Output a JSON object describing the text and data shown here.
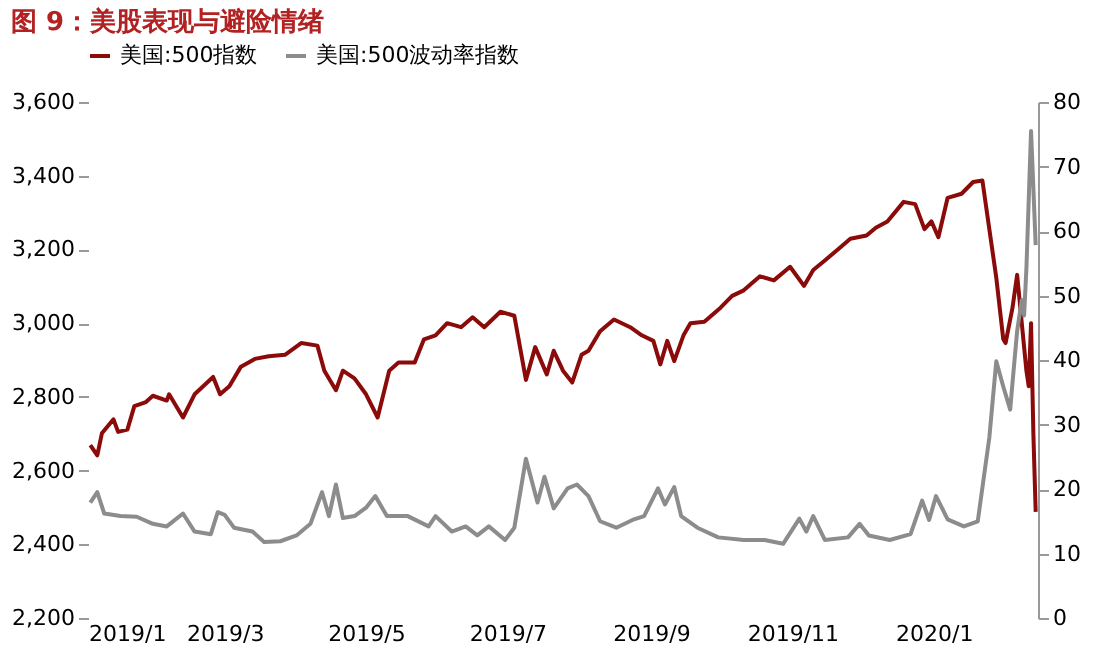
{
  "chart_data": {
    "type": "line",
    "title": "图 9：美股表现与避险情绪",
    "xlim": [
      "2019-01-01",
      "2020-02-15"
    ],
    "xticks": [
      {
        "value": "2019-01-01",
        "label": "2019/1"
      },
      {
        "value": "2019-03-01",
        "label": "2019/3"
      },
      {
        "value": "2019-05-01",
        "label": "2019/5"
      },
      {
        "value": "2019-07-01",
        "label": "2019/7"
      },
      {
        "value": "2019-09-01",
        "label": "2019/9"
      },
      {
        "value": "2019-11-01",
        "label": "2019/11"
      },
      {
        "value": "2020-01-01",
        "label": "2020/1"
      }
    ],
    "ylim": [
      2200,
      3600
    ],
    "yticks": [
      {
        "value": 2200,
        "label": "2,200"
      },
      {
        "value": 2400,
        "label": "2,400"
      },
      {
        "value": 2600,
        "label": "2,600"
      },
      {
        "value": 2800,
        "label": "2,800"
      },
      {
        "value": 3000,
        "label": "3,000"
      },
      {
        "value": 3200,
        "label": "3,200"
      },
      {
        "value": 3400,
        "label": "3,400"
      },
      {
        "value": 3600,
        "label": "3,600"
      }
    ],
    "y2lim": [
      0,
      80
    ],
    "y2ticks": [
      0,
      10,
      20,
      30,
      40,
      50,
      60,
      70,
      80
    ],
    "grid": false,
    "legend": "top",
    "marker": "none",
    "line_style": "solid",
    "series": [
      {
        "name": "美国:500指数",
        "color": "#8b0a0a",
        "x": [
          "2019-01-02",
          "2019-01-05",
          "2019-01-07",
          "2019-01-12",
          "2019-01-14",
          "2019-01-18",
          "2019-01-21",
          "2019-01-26",
          "2019-01-29",
          "2019-02-04",
          "2019-02-05",
          "2019-02-11",
          "2019-02-16",
          "2019-02-24",
          "2019-02-27",
          "2019-03-03",
          "2019-03-08",
          "2019-03-14",
          "2019-03-20",
          "2019-03-27",
          "2019-04-03",
          "2019-04-10",
          "2019-04-13",
          "2019-04-18",
          "2019-04-21",
          "2019-04-26",
          "2019-05-01",
          "2019-05-06",
          "2019-05-11",
          "2019-05-15",
          "2019-05-22",
          "2019-05-26",
          "2019-05-31",
          "2019-06-05",
          "2019-06-11",
          "2019-06-16",
          "2019-06-21",
          "2019-06-28",
          "2019-07-04",
          "2019-07-09",
          "2019-07-13",
          "2019-07-18",
          "2019-07-21",
          "2019-07-25",
          "2019-07-29",
          "2019-08-02",
          "2019-08-05",
          "2019-08-10",
          "2019-08-16",
          "2019-08-23",
          "2019-08-28",
          "2019-09-02",
          "2019-09-05",
          "2019-09-08",
          "2019-09-11",
          "2019-09-15",
          "2019-09-18",
          "2019-09-24",
          "2019-10-01",
          "2019-10-06",
          "2019-10-11",
          "2019-10-18",
          "2019-10-24",
          "2019-10-31",
          "2019-11-06",
          "2019-11-10",
          "2019-11-15",
          "2019-11-21",
          "2019-11-26",
          "2019-12-03",
          "2019-12-07",
          "2019-12-12",
          "2019-12-19",
          "2019-12-24",
          "2019-12-28",
          "2019-12-31",
          "2020-01-03",
          "2020-01-07",
          "2020-01-13",
          "2020-01-18",
          "2020-01-22",
          "2020-01-25",
          "2020-01-28",
          "2020-01-31",
          "2020-02-01",
          "2020-02-04",
          "2020-02-06",
          "2020-02-08",
          "2020-02-10",
          "2020-02-11",
          "2020-02-12",
          "2020-02-13",
          "2020-02-14"
        ],
        "values": [
          2669,
          2641,
          2701,
          2739,
          2705,
          2711,
          2775,
          2786,
          2803,
          2790,
          2807,
          2744,
          2807,
          2854,
          2807,
          2829,
          2882,
          2903,
          2910,
          2914,
          2946,
          2939,
          2871,
          2818,
          2871,
          2850,
          2807,
          2744,
          2871,
          2893,
          2893,
          2956,
          2967,
          3000,
          2989,
          3016,
          2989,
          3031,
          3020,
          2846,
          2935,
          2861,
          2925,
          2871,
          2839,
          2914,
          2925,
          2978,
          3010,
          2989,
          2967,
          2952,
          2888,
          2952,
          2897,
          2967,
          3000,
          3004,
          3042,
          3074,
          3089,
          3127,
          3116,
          3153,
          3101,
          3144,
          3170,
          3202,
          3229,
          3238,
          3259,
          3276,
          3329,
          3323,
          3255,
          3276,
          3233,
          3340,
          3351,
          3383,
          3387,
          3255,
          3123,
          2957,
          2946,
          3042,
          3131,
          3000,
          2871,
          2829,
          3000,
          2701,
          2488
        ]
      },
      {
        "name": "美国:500波动率指数",
        "color": "#8c8c8c",
        "axis": "y2",
        "x": [
          "2019-01-02",
          "2019-01-05",
          "2019-01-08",
          "2019-01-15",
          "2019-01-22",
          "2019-01-29",
          "2019-02-04",
          "2019-02-11",
          "2019-02-16",
          "2019-02-23",
          "2019-02-26",
          "2019-03-01",
          "2019-03-05",
          "2019-03-13",
          "2019-03-18",
          "2019-03-25",
          "2019-04-01",
          "2019-04-07",
          "2019-04-12",
          "2019-04-15",
          "2019-04-18",
          "2019-04-21",
          "2019-04-26",
          "2019-05-01",
          "2019-05-05",
          "2019-05-10",
          "2019-05-19",
          "2019-05-28",
          "2019-05-31",
          "2019-06-07",
          "2019-06-13",
          "2019-06-18",
          "2019-06-23",
          "2019-06-30",
          "2019-07-04",
          "2019-07-09",
          "2019-07-14",
          "2019-07-17",
          "2019-07-21",
          "2019-07-27",
          "2019-07-31",
          "2019-08-05",
          "2019-08-10",
          "2019-08-17",
          "2019-08-24",
          "2019-08-29",
          "2019-09-04",
          "2019-09-07",
          "2019-09-11",
          "2019-09-14",
          "2019-09-21",
          "2019-09-30",
          "2019-10-11",
          "2019-10-20",
          "2019-10-28",
          "2019-11-04",
          "2019-11-07",
          "2019-11-10",
          "2019-11-15",
          "2019-11-25",
          "2019-11-30",
          "2019-12-04",
          "2019-12-13",
          "2019-12-22",
          "2019-12-27",
          "2019-12-30",
          "2020-01-02",
          "2020-01-07",
          "2020-01-14",
          "2020-01-20",
          "2020-01-25",
          "2020-01-28",
          "2020-01-31",
          "2020-02-03",
          "2020-02-04",
          "2020-02-06",
          "2020-02-08",
          "2020-02-09",
          "2020-02-10",
          "2020-02-12",
          "2020-02-14"
        ],
        "values": [
          17.9,
          19.5,
          16.2,
          15.8,
          15.7,
          14.6,
          14.2,
          16.2,
          13.4,
          13.0,
          16.4,
          16.0,
          14.0,
          13.4,
          11.8,
          11.9,
          12.8,
          14.6,
          19.5,
          15.8,
          20.7,
          15.5,
          15.8,
          17.1,
          18.9,
          15.8,
          15.8,
          14.2,
          15.8,
          13.4,
          14.2,
          12.8,
          14.2,
          12.1,
          14.0,
          24.7,
          17.9,
          21.9,
          17.0,
          20.1,
          20.7,
          18.9,
          15.0,
          14.0,
          15.2,
          15.8,
          20.1,
          17.6,
          20.3,
          15.8,
          14.0,
          12.5,
          12.1,
          12.1,
          11.5,
          15.4,
          13.4,
          15.8,
          12.1,
          12.5,
          14.6,
          12.8,
          12.1,
          13.0,
          18.2,
          15.2,
          18.9,
          15.3,
          14.2,
          15.0,
          28.0,
          39.8,
          35.9,
          32.3,
          36.5,
          44.5,
          49.3,
          46.9,
          54.2,
          75.5,
          57.8
        ]
      }
    ]
  }
}
